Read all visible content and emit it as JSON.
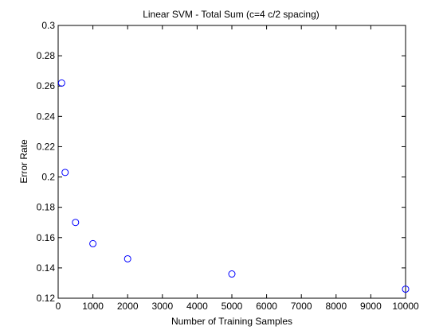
{
  "chart_data": {
    "type": "scatter",
    "title": "Linear SVM - Total Sum (c=4 c/2 spacing)",
    "xlabel": "Number of Training Samples",
    "ylabel": "Error Rate",
    "xlim": [
      0,
      10000
    ],
    "ylim": [
      0.12,
      0.3
    ],
    "x_ticks": [
      0,
      1000,
      2000,
      3000,
      4000,
      5000,
      6000,
      7000,
      8000,
      9000,
      10000
    ],
    "x_tick_labels": [
      "0",
      "1000",
      "2000",
      "3000",
      "4000",
      "5000",
      "6000",
      "7000",
      "8000",
      "9000",
      "10000"
    ],
    "y_ticks": [
      0.12,
      0.14,
      0.16,
      0.18,
      0.2,
      0.22,
      0.24,
      0.26,
      0.28,
      0.3
    ],
    "y_tick_labels": [
      "0.12",
      "0.14",
      "0.16",
      "0.18",
      "0.2",
      "0.22",
      "0.24",
      "0.26",
      "0.28",
      "0.3"
    ],
    "grid": false,
    "marker": "open-circle",
    "marker_color": "#0000ff",
    "points": [
      {
        "x": 100,
        "y": 0.262
      },
      {
        "x": 200,
        "y": 0.203
      },
      {
        "x": 500,
        "y": 0.17
      },
      {
        "x": 1000,
        "y": 0.156
      },
      {
        "x": 2000,
        "y": 0.146
      },
      {
        "x": 5000,
        "y": 0.136
      },
      {
        "x": 10000,
        "y": 0.126
      }
    ]
  }
}
